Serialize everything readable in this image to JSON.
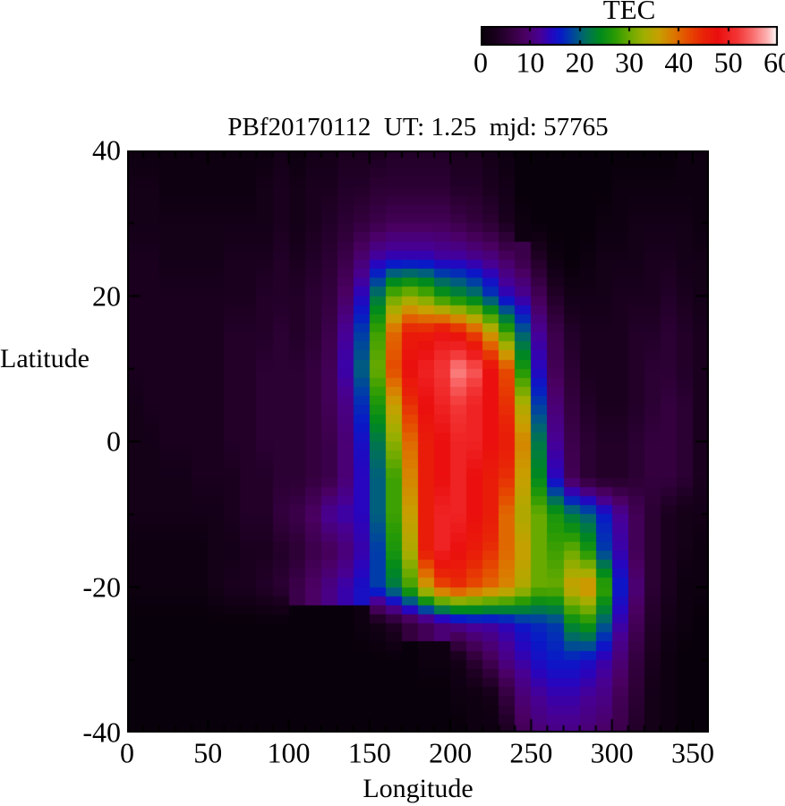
{
  "colorbar": {
    "title": "TEC",
    "tick_labels": [
      "0",
      "10",
      "20",
      "30",
      "40",
      "50",
      "60"
    ],
    "tick_values": [
      0,
      10,
      20,
      30,
      40,
      50,
      60
    ],
    "min": 0,
    "max": 60
  },
  "title": "PBf20170112  UT: 1.25  mjd: 57765",
  "axes": {
    "xlabel": "Longitude",
    "ylabel": "Latitude",
    "x_tick_labels": [
      "0",
      "50",
      "100",
      "150",
      "200",
      "250",
      "300",
      "350"
    ],
    "x_tick_values": [
      0,
      50,
      100,
      150,
      200,
      250,
      300,
      350
    ],
    "x_minor_tick_step": 10,
    "y_tick_labels": [
      "40",
      "20",
      "0",
      "-20",
      "-40"
    ],
    "y_tick_values": [
      40,
      20,
      0,
      -20,
      -40
    ],
    "y_minor_tick_step": 10,
    "xlim": [
      0,
      360
    ],
    "ylim": [
      -40,
      40
    ],
    "grid": false
  },
  "chart_data": {
    "type": "heatmap",
    "title": "PBf20170112  UT: 1.25  mjd: 57765",
    "dataset": "PBf20170112",
    "ut_hours": 1.25,
    "mjd": 57765,
    "xlabel": "Longitude",
    "ylabel": "Latitude",
    "value_label": "TEC",
    "value_range": [
      0,
      60
    ],
    "lon_bin_start_deg": 0,
    "lon_bin_size_deg": 10,
    "lats": [
      40,
      35,
      30,
      25,
      20,
      15,
      10,
      5,
      0,
      -5,
      -10,
      -15,
      -20,
      -25,
      -30,
      -35,
      -40
    ],
    "values": [
      [
        1,
        1,
        1,
        1,
        1,
        1,
        1,
        1,
        1,
        2,
        1,
        2,
        2,
        3,
        3,
        3,
        4,
        4,
        4,
        4,
        3,
        3,
        2,
        1,
        0,
        0,
        0,
        0,
        0,
        0,
        0,
        0,
        0,
        0,
        1,
        1
      ],
      [
        2,
        2,
        1,
        1,
        1,
        1,
        1,
        1,
        2,
        3,
        2,
        3,
        3,
        4,
        4,
        5,
        5,
        5,
        5,
        5,
        4,
        4,
        3,
        2,
        0,
        0,
        0,
        0,
        0,
        0,
        1,
        1,
        1,
        1,
        1,
        1
      ],
      [
        2,
        2,
        2,
        2,
        2,
        2,
        2,
        2,
        2,
        3,
        2,
        3,
        4,
        5,
        6,
        7,
        8,
        8,
        8,
        8,
        7,
        6,
        5,
        3,
        1,
        0,
        0,
        0,
        0,
        1,
        1,
        2,
        2,
        2,
        2,
        1
      ],
      [
        3,
        3,
        2,
        2,
        2,
        2,
        3,
        3,
        3,
        4,
        3,
        4,
        5,
        7,
        10,
        13,
        14,
        14,
        14,
        13,
        13,
        12,
        11,
        9,
        7,
        4,
        1,
        0,
        1,
        2,
        2,
        2,
        3,
        3,
        2,
        2
      ],
      [
        3,
        3,
        3,
        3,
        3,
        3,
        3,
        3,
        4,
        4,
        4,
        5,
        6,
        9,
        14,
        22,
        30,
        32,
        30,
        26,
        24,
        22,
        18,
        14,
        12,
        8,
        4,
        2,
        2,
        2,
        3,
        3,
        3,
        4,
        3,
        2
      ],
      [
        3,
        3,
        3,
        3,
        3,
        3,
        4,
        4,
        4,
        5,
        4,
        5,
        7,
        12,
        18,
        28,
        40,
        46,
        46,
        48,
        46,
        42,
        36,
        28,
        20,
        12,
        7,
        4,
        3,
        3,
        3,
        4,
        4,
        5,
        4,
        3
      ],
      [
        3,
        3,
        3,
        3,
        3,
        3,
        4,
        4,
        5,
        5,
        5,
        6,
        8,
        13,
        20,
        30,
        42,
        48,
        50,
        52,
        56,
        54,
        48,
        42,
        26,
        14,
        8,
        5,
        3,
        3,
        3,
        4,
        5,
        5,
        4,
        3
      ],
      [
        2,
        3,
        3,
        3,
        3,
        3,
        4,
        4,
        5,
        5,
        5,
        6,
        8,
        11,
        17,
        26,
        36,
        44,
        48,
        50,
        52,
        50,
        48,
        44,
        34,
        18,
        10,
        6,
        4,
        3,
        3,
        4,
        5,
        6,
        5,
        3
      ],
      [
        2,
        2,
        3,
        3,
        3,
        3,
        4,
        4,
        5,
        5,
        5,
        6,
        7,
        10,
        15,
        22,
        32,
        40,
        46,
        48,
        50,
        50,
        48,
        46,
        38,
        22,
        12,
        7,
        5,
        4,
        4,
        5,
        6,
        6,
        5,
        3
      ],
      [
        2,
        2,
        2,
        2,
        3,
        3,
        3,
        4,
        4,
        5,
        5,
        6,
        7,
        10,
        14,
        20,
        28,
        38,
        46,
        48,
        50,
        48,
        46,
        44,
        36,
        24,
        14,
        8,
        5,
        4,
        4,
        5,
        6,
        6,
        5,
        3
      ],
      [
        2,
        2,
        2,
        2,
        2,
        2,
        3,
        4,
        4,
        6,
        7,
        9,
        12,
        13,
        14,
        20,
        28,
        36,
        46,
        50,
        50,
        48,
        46,
        40,
        34,
        30,
        26,
        22,
        20,
        16,
        12,
        8,
        5,
        3,
        2,
        2
      ],
      [
        1,
        1,
        1,
        1,
        1,
        2,
        2,
        3,
        3,
        4,
        5,
        7,
        8,
        10,
        13,
        18,
        26,
        34,
        46,
        50,
        48,
        46,
        44,
        40,
        36,
        30,
        28,
        30,
        26,
        18,
        13,
        8,
        5,
        3,
        2,
        1
      ],
      [
        1,
        1,
        1,
        1,
        1,
        2,
        3,
        3,
        4,
        5,
        7,
        9,
        11,
        13,
        15,
        18,
        22,
        28,
        36,
        42,
        44,
        42,
        40,
        38,
        34,
        30,
        30,
        36,
        38,
        28,
        16,
        10,
        5,
        3,
        1,
        1
      ],
      [
        0,
        0,
        0,
        0,
        0,
        0,
        0,
        0,
        0,
        0,
        0,
        0,
        0,
        0,
        1,
        2,
        4,
        6,
        8,
        10,
        12,
        13,
        13,
        14,
        16,
        17,
        18,
        24,
        26,
        20,
        13,
        8,
        4,
        2,
        1,
        0
      ],
      [
        0,
        0,
        0,
        0,
        0,
        0,
        0,
        0,
        0,
        0,
        0,
        0,
        0,
        0,
        0,
        0,
        0,
        0,
        1,
        1,
        2,
        5,
        8,
        11,
        13,
        15,
        16,
        16,
        15,
        13,
        10,
        6,
        3,
        1,
        0,
        0
      ],
      [
        0,
        0,
        0,
        0,
        0,
        0,
        0,
        0,
        0,
        0,
        0,
        0,
        0,
        0,
        0,
        0,
        0,
        0,
        0,
        0,
        1,
        1,
        2,
        6,
        10,
        12,
        13,
        13,
        12,
        11,
        8,
        5,
        2,
        1,
        0,
        0
      ],
      [
        0,
        0,
        0,
        0,
        0,
        0,
        0,
        0,
        0,
        0,
        0,
        0,
        0,
        0,
        0,
        0,
        0,
        0,
        0,
        0,
        0,
        1,
        1,
        3,
        8,
        10,
        11,
        11,
        10,
        9,
        7,
        4,
        2,
        1,
        0,
        0
      ]
    ],
    "colormap_stops": [
      [
        0,
        8,
        0,
        10
      ],
      [
        3,
        26,
        0,
        30
      ],
      [
        6,
        52,
        0,
        62
      ],
      [
        9,
        75,
        0,
        100
      ],
      [
        12,
        72,
        0,
        150
      ],
      [
        14,
        40,
        5,
        190
      ],
      [
        16,
        10,
        25,
        200
      ],
      [
        18,
        0,
        60,
        170
      ],
      [
        20,
        0,
        95,
        125
      ],
      [
        22,
        0,
        120,
        75
      ],
      [
        24,
        0,
        138,
        30
      ],
      [
        27,
        40,
        155,
        5
      ],
      [
        30,
        105,
        170,
        0
      ],
      [
        33,
        160,
        175,
        0
      ],
      [
        36,
        200,
        160,
        0
      ],
      [
        39,
        220,
        120,
        0
      ],
      [
        42,
        230,
        75,
        0
      ],
      [
        45,
        233,
        35,
        8
      ],
      [
        48,
        235,
        15,
        15
      ],
      [
        52,
        244,
        55,
        55
      ],
      [
        55,
        250,
        110,
        110
      ],
      [
        58,
        253,
        180,
        180
      ],
      [
        60,
        255,
        255,
        255
      ]
    ]
  }
}
